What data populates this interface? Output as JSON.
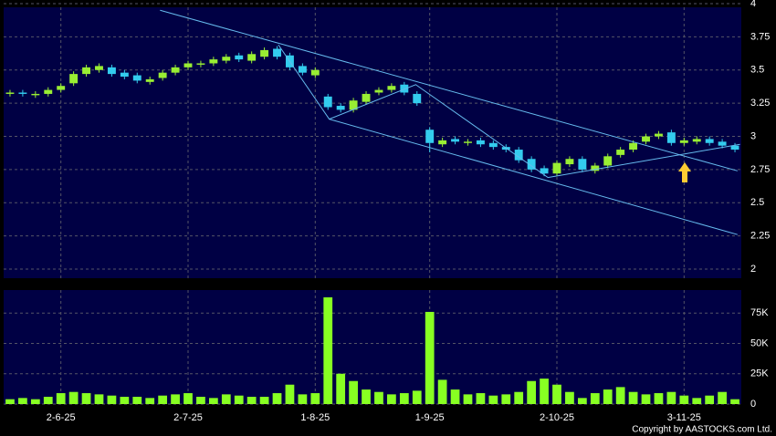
{
  "chart_data": {
    "type": "candlestick",
    "categories": [
      null,
      null,
      null,
      null,
      "2-6-25",
      null,
      null,
      null,
      null,
      null,
      null,
      null,
      null,
      null,
      "2-7-25",
      null,
      null,
      null,
      null,
      null,
      null,
      null,
      null,
      null,
      "1-8-25",
      null,
      null,
      null,
      null,
      null,
      null,
      null,
      null,
      "1-9-25",
      null,
      null,
      null,
      null,
      null,
      null,
      null,
      null,
      null,
      "2-10-25",
      null,
      null,
      null,
      null,
      null,
      null,
      null,
      null,
      null,
      "3-11-25",
      null,
      null,
      null,
      null
    ],
    "open": [
      3.32,
      3.33,
      3.31,
      3.32,
      3.35,
      3.4,
      3.47,
      3.5,
      3.52,
      3.48,
      3.46,
      3.41,
      3.44,
      3.48,
      3.52,
      3.54,
      3.55,
      3.57,
      3.61,
      3.57,
      3.6,
      3.66,
      3.61,
      3.53,
      3.46,
      3.3,
      3.23,
      3.2,
      3.26,
      3.33,
      3.35,
      3.39,
      3.32,
      3.05,
      2.94,
      2.98,
      2.95,
      2.97,
      2.95,
      2.92,
      2.9,
      2.83,
      2.76,
      2.72,
      2.79,
      2.83,
      2.74,
      2.78,
      2.86,
      2.9,
      2.96,
      3.0,
      3.03,
      2.95,
      2.96,
      2.98,
      2.96,
      2.93
    ],
    "high": [
      3.35,
      3.35,
      3.34,
      3.37,
      3.4,
      3.49,
      3.54,
      3.55,
      3.54,
      3.5,
      3.48,
      3.45,
      3.5,
      3.54,
      3.57,
      3.57,
      3.6,
      3.62,
      3.63,
      3.64,
      3.67,
      3.68,
      3.63,
      3.55,
      3.52,
      3.32,
      3.25,
      3.29,
      3.34,
      3.37,
      3.4,
      3.41,
      3.34,
      3.07,
      2.99,
      3.0,
      2.98,
      2.99,
      2.97,
      2.94,
      2.92,
      2.85,
      2.78,
      2.82,
      2.85,
      2.85,
      2.8,
      2.87,
      2.92,
      2.97,
      3.02,
      3.04,
      3.05,
      2.99,
      3.0,
      3.0,
      2.98,
      2.95
    ],
    "low": [
      3.3,
      3.3,
      3.29,
      3.3,
      3.33,
      3.38,
      3.45,
      3.48,
      3.45,
      3.43,
      3.4,
      3.39,
      3.42,
      3.46,
      3.5,
      3.52,
      3.53,
      3.55,
      3.56,
      3.55,
      3.58,
      3.58,
      3.5,
      3.46,
      3.44,
      3.2,
      3.18,
      3.18,
      3.24,
      3.31,
      3.33,
      3.31,
      3.23,
      2.88,
      2.92,
      2.94,
      2.93,
      2.92,
      2.9,
      2.88,
      2.8,
      2.73,
      2.7,
      2.7,
      2.77,
      2.73,
      2.72,
      2.76,
      2.84,
      2.88,
      2.94,
      2.98,
      2.93,
      2.93,
      2.94,
      2.93,
      2.91,
      2.88
    ],
    "close": [
      3.33,
      3.32,
      3.32,
      3.35,
      3.38,
      3.47,
      3.52,
      3.53,
      3.47,
      3.45,
      3.42,
      3.43,
      3.48,
      3.52,
      3.55,
      3.55,
      3.58,
      3.6,
      3.58,
      3.62,
      3.65,
      3.6,
      3.52,
      3.48,
      3.5,
      3.22,
      3.2,
      3.27,
      3.32,
      3.35,
      3.38,
      3.33,
      3.25,
      2.95,
      2.97,
      2.96,
      2.96,
      2.94,
      2.92,
      2.9,
      2.82,
      2.75,
      2.72,
      2.8,
      2.83,
      2.75,
      2.78,
      2.85,
      2.9,
      2.95,
      3.0,
      3.02,
      2.95,
      2.97,
      2.98,
      2.95,
      2.93,
      2.9
    ],
    "volume": [
      4000,
      5000,
      4000,
      6000,
      9000,
      10000,
      9000,
      8000,
      7000,
      6000,
      6000,
      5000,
      7000,
      8000,
      9000,
      6000,
      5000,
      8000,
      7000,
      6000,
      6000,
      9000,
      16000,
      8000,
      9000,
      88000,
      25000,
      19000,
      12000,
      10000,
      8000,
      9000,
      11000,
      76000,
      20000,
      12000,
      8000,
      9000,
      7000,
      8000,
      10000,
      19000,
      21000,
      16000,
      10000,
      5000,
      9000,
      12000,
      14000,
      10000,
      8000,
      9000,
      10000,
      7000,
      5000,
      7000,
      10000,
      4000
    ],
    "up_color": "#99ee33",
    "down_color": "#33ccee",
    "volume_color": "#88ff22",
    "line_color": "#66bbee",
    "ylim": [
      2,
      4
    ],
    "yticks": [
      2,
      2.25,
      2.5,
      2.75,
      3,
      3.25,
      3.5,
      3.75,
      4
    ],
    "y2lim": [
      0,
      94000
    ],
    "y2ticks": [
      {
        "value": 0,
        "label": "0"
      },
      {
        "value": 25000,
        "label": "25K"
      },
      {
        "value": 50000,
        "label": "50K"
      },
      {
        "value": 75000,
        "label": "75K"
      }
    ],
    "trend_lines": [
      {
        "x": [
          11.8,
          57.2
        ],
        "y": [
          3.95,
          2.74
        ]
      },
      {
        "x": [
          25.1,
          57.2
        ],
        "y": [
          3.13,
          2.26
        ]
      },
      {
        "x": [
          21.1,
          25.1,
          31.9,
          42.3,
          57.4
        ],
        "y": [
          3.69,
          3.13,
          3.39,
          2.69,
          2.94
        ]
      }
    ],
    "grid": true,
    "copyright": "Copyright by AASTOCKS.com Ltd."
  }
}
